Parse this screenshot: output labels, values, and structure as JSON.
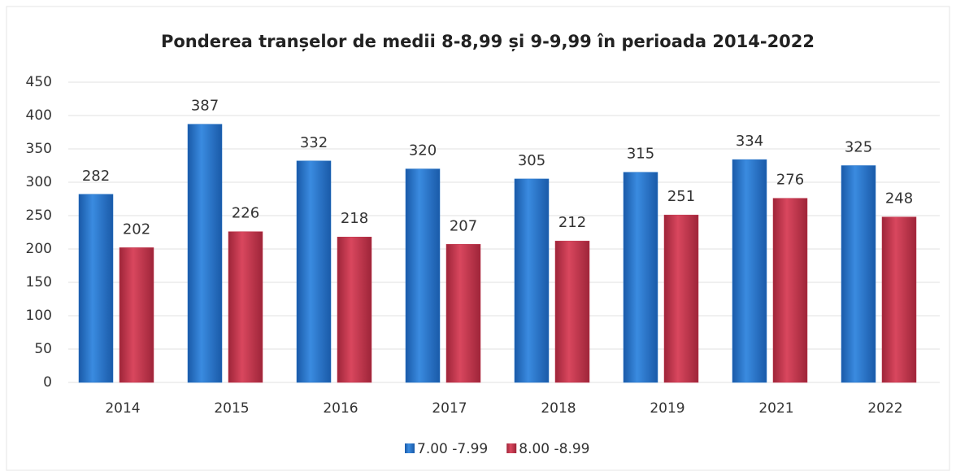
{
  "chart_data": {
    "type": "bar",
    "title": "Ponderea tranșelor de medii 8-8,99 și 9-9,99 în perioada 2014-2022",
    "categories": [
      "2014",
      "2015",
      "2016",
      "2017",
      "2018",
      "2019",
      "2021",
      "2022"
    ],
    "series": [
      {
        "name": "7.00 -7.99",
        "color": "#1f6fc5",
        "values": [
          282,
          387,
          332,
          320,
          305,
          315,
          334,
          325
        ]
      },
      {
        "name": "8.00 -8.99",
        "color": "#c0334a",
        "values": [
          202,
          226,
          218,
          207,
          212,
          251,
          276,
          248
        ]
      }
    ],
    "ylim": [
      0,
      450
    ],
    "yticks": [
      0,
      50,
      100,
      150,
      200,
      250,
      300,
      350,
      400,
      450
    ],
    "grid": true,
    "legend": "bottom"
  }
}
